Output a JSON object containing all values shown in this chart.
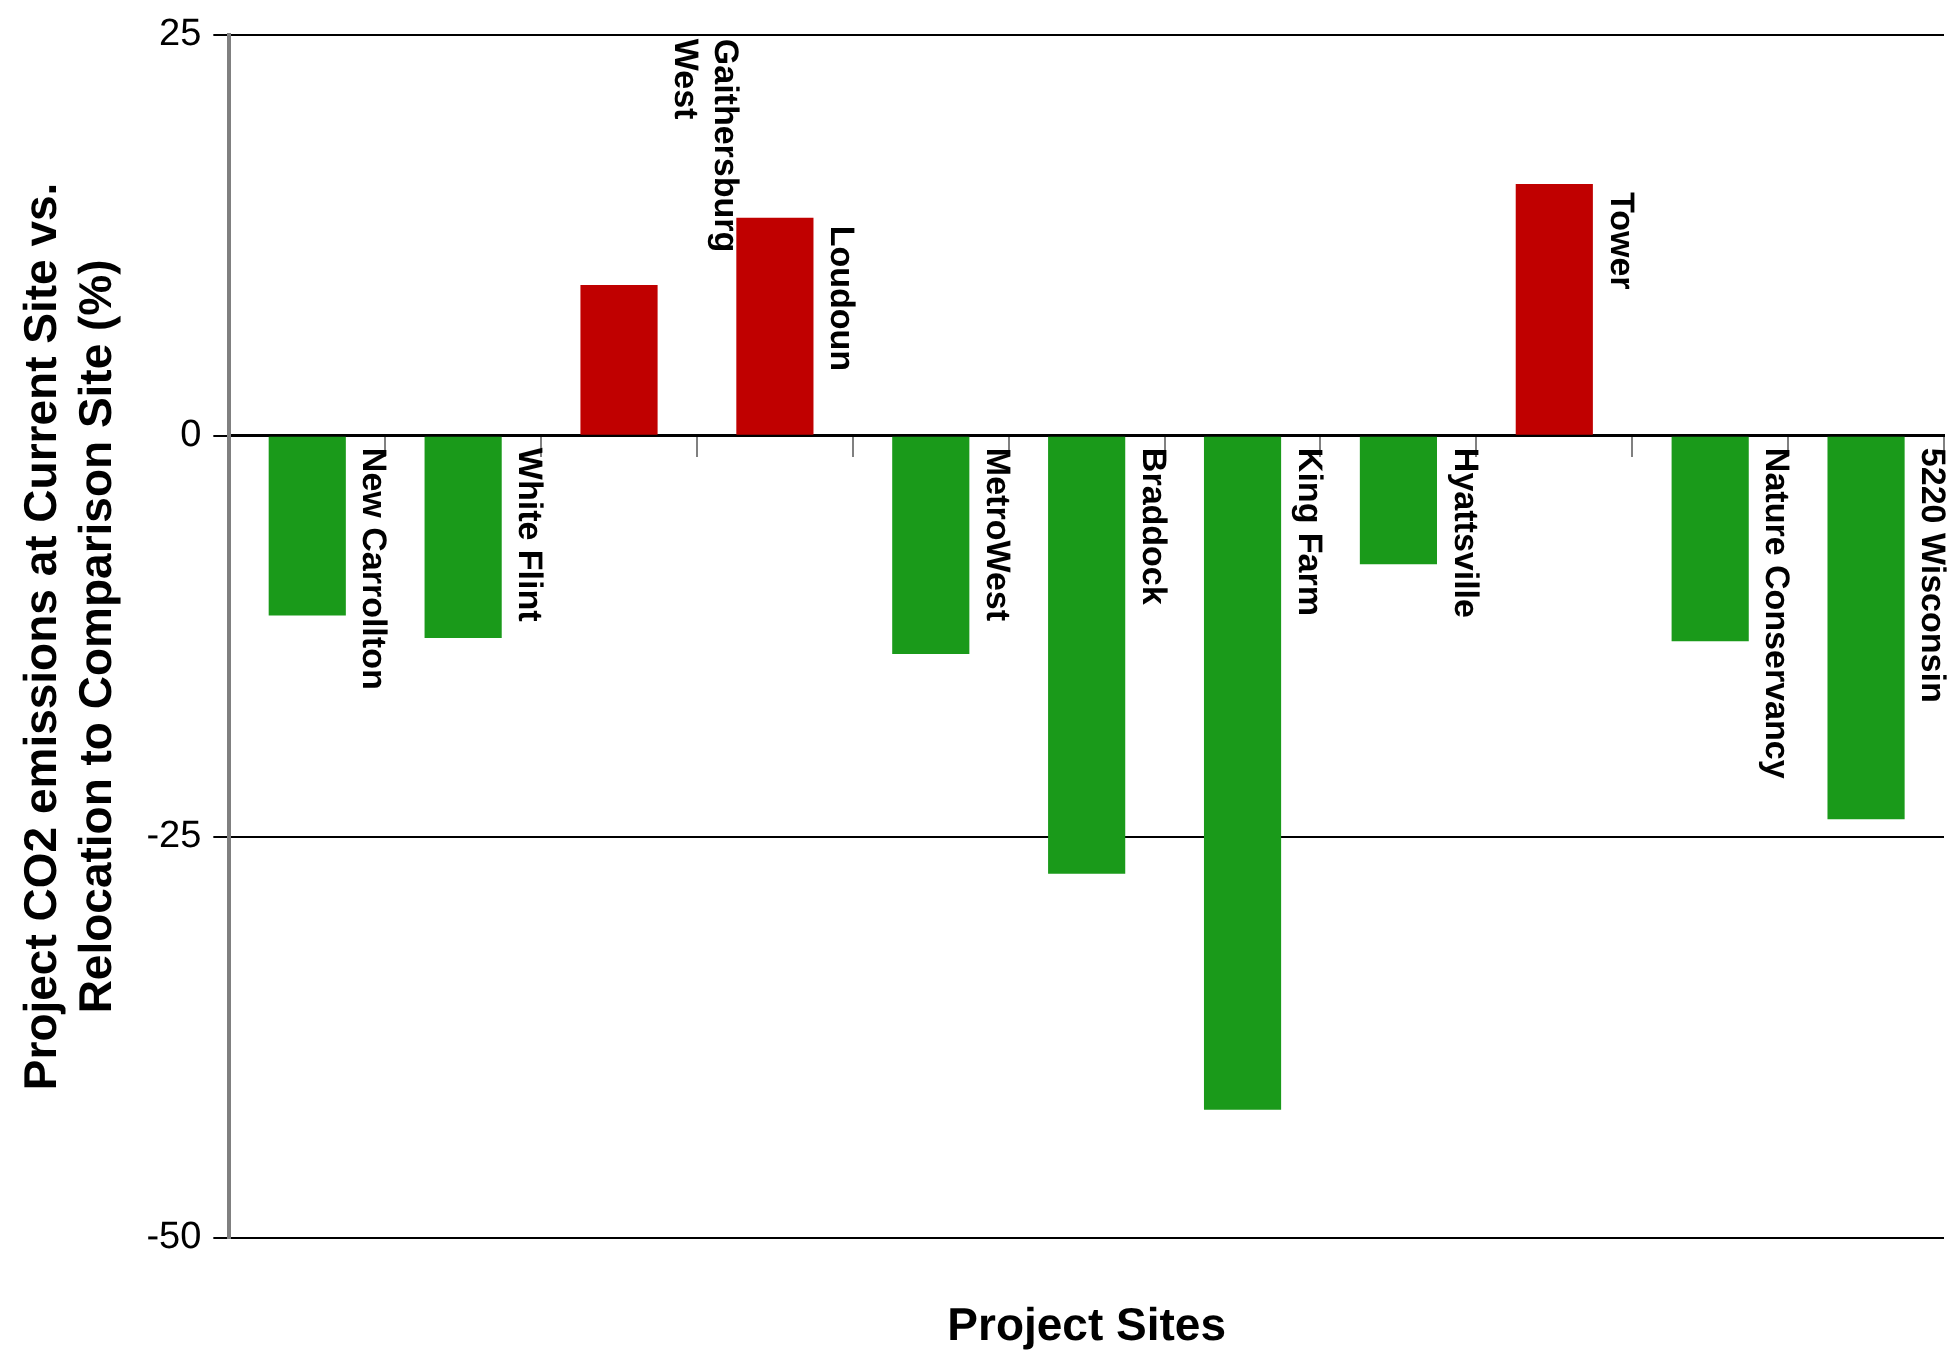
{
  "chart_data": {
    "type": "bar",
    "xlabel": "Project Sites",
    "ylabel": "Project CO2 emissions at Current Site vs. Relocation to Comparison Site (%)",
    "categories": [
      "New Carrollton",
      "White Flint",
      "Gaithersburg West",
      "Loudoun",
      "MetroWest",
      "Braddock",
      "King Farm",
      "Hyattsville",
      "Tower",
      "Nature Conservancy",
      "5220 Wisconsin"
    ],
    "values": [
      -11.2,
      -12.6,
      9.4,
      13.6,
      -13.6,
      -27.3,
      -42,
      -8,
      15.7,
      -12.8,
      -23.9
    ],
    "colors": [
      "#1a9a1a",
      "#1a9a1a",
      "#c00000",
      "#c00000",
      "#1a9a1a",
      "#1a9a1a",
      "#1a9a1a",
      "#1a9a1a",
      "#c00000",
      "#1a9a1a",
      "#1a9a1a"
    ],
    "ylim": [
      -50,
      25
    ],
    "yticks": [
      -50,
      -25,
      0,
      25
    ],
    "grid": "y",
    "legend": false,
    "tick_labels": "y"
  }
}
